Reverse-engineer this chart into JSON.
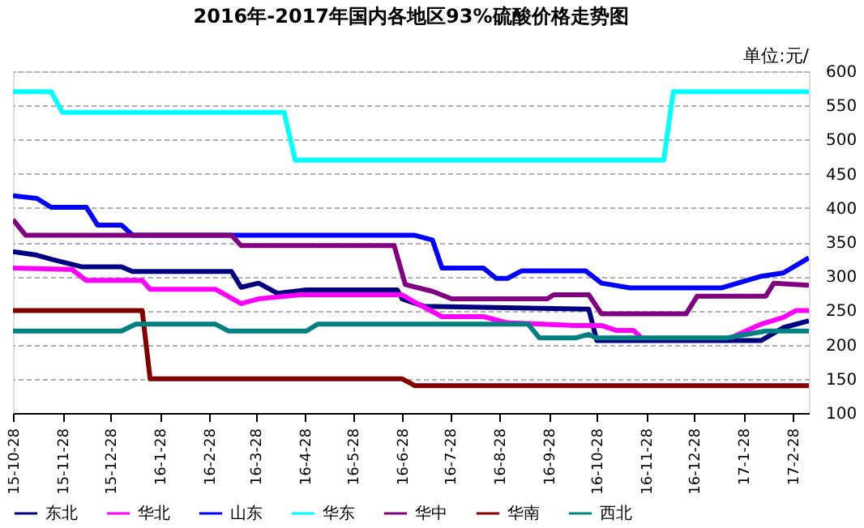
{
  "chart_data": {
    "type": "line",
    "title": "2016年-2017年国内各地区93%硫酸价格走势图",
    "annotations": [
      "单位:元/"
    ],
    "xlim": [
      "2015-10-28",
      "2017-03-10"
    ],
    "xticks": [
      {
        "value": "2015-10-28",
        "label": "15-10-28"
      },
      {
        "value": "2015-11-28",
        "label": "15-11-28"
      },
      {
        "value": "2015-12-28",
        "label": "15-12-28"
      },
      {
        "value": "2016-01-28",
        "label": "16-1-28"
      },
      {
        "value": "2016-02-28",
        "label": "16-2-28"
      },
      {
        "value": "2016-03-28",
        "label": "16-3-28"
      },
      {
        "value": "2016-04-28",
        "label": "16-4-28"
      },
      {
        "value": "2016-05-28",
        "label": "16-5-28"
      },
      {
        "value": "2016-06-28",
        "label": "16-6-28"
      },
      {
        "value": "2016-07-28",
        "label": "16-7-28"
      },
      {
        "value": "2016-08-28",
        "label": "16-8-28"
      },
      {
        "value": "2016-09-28",
        "label": "16-9-28"
      },
      {
        "value": "2016-10-28",
        "label": "16-10-28"
      },
      {
        "value": "2016-11-28",
        "label": "16-11-28"
      },
      {
        "value": "2016-12-28",
        "label": "16-12-28"
      },
      {
        "value": "2017-01-28",
        "label": "17-1-28"
      },
      {
        "value": "2017-02-28",
        "label": "17-2-28"
      }
    ],
    "ylim": [
      100,
      600
    ],
    "yticks": [
      100,
      150,
      200,
      250,
      300,
      350,
      400,
      450,
      500,
      550,
      600
    ],
    "grid": "y",
    "legend": "bottom",
    "marker": "none",
    "line_style": "solid",
    "series": [
      {
        "name": "东北",
        "color": "#000080",
        "x": [
          "2015-10-28",
          "2015-11-12",
          "2015-11-21",
          "2015-12-10",
          "2016-01-04",
          "2016-01-11",
          "2016-03-13",
          "2016-03-19",
          "2016-03-30",
          "2016-04-11",
          "2016-04-29",
          "2016-06-25",
          "2016-06-28",
          "2016-07-12",
          "2016-10-23",
          "2016-10-28",
          "2017-02-08",
          "2017-02-22",
          "2017-03-10"
        ],
        "values": [
          336,
          331,
          325,
          314,
          314,
          307,
          307,
          284,
          290,
          275,
          280,
          280,
          267,
          256,
          252,
          206,
          206,
          225,
          235
        ]
      },
      {
        "name": "华北",
        "color": "#ff00ff",
        "x": [
          "2015-10-28",
          "2015-12-04",
          "2015-12-13",
          "2016-01-17",
          "2016-01-22",
          "2016-03-03",
          "2016-03-19",
          "2016-03-30",
          "2016-04-25",
          "2016-06-28",
          "2016-07-06",
          "2016-07-23",
          "2016-08-18",
          "2016-09-02",
          "2016-10-15",
          "2016-10-31",
          "2016-11-09",
          "2016-11-20",
          "2016-11-25",
          "2016-12-20",
          "2017-01-20",
          "2017-02-08",
          "2017-02-22",
          "2017-03-02",
          "2017-03-10"
        ],
        "values": [
          312,
          310,
          294,
          294,
          281,
          281,
          260,
          267,
          273,
          273,
          262,
          241,
          241,
          232,
          228,
          228,
          221,
          221,
          210,
          null,
          210,
          230,
          240,
          250,
          250
        ]
      },
      {
        "name": "山东",
        "color": "#0000ff",
        "x": [
          "2015-10-28",
          "2015-11-12",
          "2015-11-21",
          "2015-12-13",
          "2015-12-20",
          "2016-01-04",
          "2016-01-11",
          "2016-07-06",
          "2016-07-17",
          "2016-07-23",
          "2016-08-18",
          "2016-08-26",
          "2016-09-02",
          "2016-09-11",
          "2016-10-21",
          "2016-10-31",
          "2016-11-18",
          "2017-01-14",
          "2017-02-08",
          "2017-02-22",
          "2017-03-10"
        ],
        "values": [
          418,
          414,
          401,
          401,
          375,
          375,
          360,
          360,
          353,
          312,
          312,
          297,
          297,
          308,
          308,
          290,
          283,
          283,
          300,
          305,
          327
        ]
      },
      {
        "name": "华东",
        "color": "#00ffff",
        "x": [
          "2015-10-28",
          "2015-11-21",
          "2015-11-28",
          "2016-04-15",
          "2016-04-22",
          "2016-12-09",
          "2016-12-15",
          "2017-03-10"
        ],
        "values": [
          570,
          570,
          540,
          540,
          470,
          470,
          570,
          570
        ]
      },
      {
        "name": "华中",
        "color": "#800080",
        "x": [
          "2015-10-28",
          "2015-11-05",
          "2016-03-13",
          "2016-03-19",
          "2016-06-23",
          "2016-06-30",
          "2016-07-17",
          "2016-07-29",
          "2016-09-27",
          "2016-10-01",
          "2016-10-23",
          "2016-10-31",
          "2016-12-23",
          "2016-12-30",
          "2017-02-11",
          "2017-02-16",
          "2017-03-10"
        ],
        "values": [
          383,
          360,
          360,
          345,
          345,
          288,
          278,
          267,
          267,
          273,
          273,
          245,
          245,
          271,
          271,
          290,
          287
        ]
      },
      {
        "name": "华南",
        "color": "#800000",
        "x": [
          "2015-10-28",
          "2016-01-17",
          "2016-01-22",
          "2016-06-28",
          "2016-07-06",
          "2017-03-10"
        ],
        "values": [
          250,
          250,
          150,
          150,
          140,
          140
        ]
      },
      {
        "name": "西北",
        "color": "#008080",
        "x": [
          "2015-10-28",
          "2016-01-04",
          "2016-01-13",
          "2016-03-03",
          "2016-03-11",
          "2016-04-29",
          "2016-05-06",
          "2016-09-15",
          "2016-09-22",
          "2016-10-15",
          "2016-10-23",
          "2016-10-28",
          "2017-01-18",
          "2017-02-11",
          "2017-03-10"
        ],
        "values": [
          220,
          220,
          230,
          230,
          220,
          220,
          230,
          230,
          210,
          210,
          215,
          210,
          210,
          220,
          220
        ]
      }
    ]
  }
}
